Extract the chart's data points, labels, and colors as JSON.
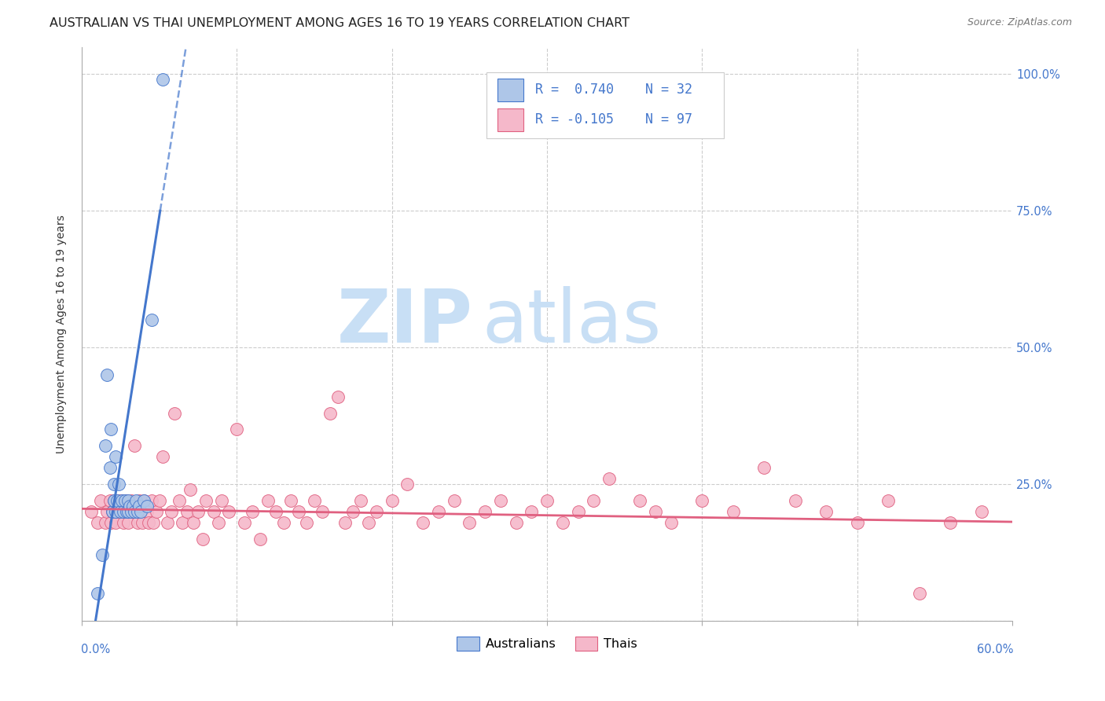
{
  "title": "AUSTRALIAN VS THAI UNEMPLOYMENT AMONG AGES 16 TO 19 YEARS CORRELATION CHART",
  "source": "Source: ZipAtlas.com",
  "ylabel": "Unemployment Among Ages 16 to 19 years",
  "right_yticks": [
    0.0,
    0.25,
    0.5,
    0.75,
    1.0
  ],
  "right_yticklabels": [
    "",
    "25.0%",
    "50.0%",
    "75.0%",
    "100.0%"
  ],
  "aus_R": 0.74,
  "aus_N": 32,
  "thai_R": -0.105,
  "thai_N": 97,
  "aus_color": "#aec6e8",
  "thai_color": "#f5b8ca",
  "aus_line_color": "#4477cc",
  "thai_line_color": "#e06080",
  "background_color": "#ffffff",
  "watermark_zip": "ZIP",
  "watermark_atlas": "atlas",
  "watermark_color_zip": "#c8dff5",
  "watermark_color_atlas": "#c8dff5",
  "legend_aus_label": "Australians",
  "legend_thai_label": "Thais",
  "aus_scatter_x": [
    0.01,
    0.013,
    0.015,
    0.016,
    0.018,
    0.019,
    0.02,
    0.021,
    0.021,
    0.022,
    0.022,
    0.023,
    0.024,
    0.025,
    0.026,
    0.027,
    0.028,
    0.029,
    0.03,
    0.03,
    0.031,
    0.032,
    0.033,
    0.034,
    0.035,
    0.036,
    0.037,
    0.038,
    0.04,
    0.042,
    0.045,
    0.052
  ],
  "aus_scatter_y": [
    0.05,
    0.12,
    0.32,
    0.45,
    0.28,
    0.35,
    0.2,
    0.25,
    0.22,
    0.3,
    0.2,
    0.22,
    0.25,
    0.2,
    0.22,
    0.2,
    0.22,
    0.2,
    0.22,
    0.2,
    0.21,
    0.2,
    0.21,
    0.2,
    0.22,
    0.2,
    0.21,
    0.2,
    0.22,
    0.21,
    0.55,
    0.99
  ],
  "thai_scatter_x": [
    0.006,
    0.01,
    0.012,
    0.015,
    0.016,
    0.018,
    0.019,
    0.02,
    0.021,
    0.022,
    0.023,
    0.024,
    0.025,
    0.026,
    0.027,
    0.028,
    0.029,
    0.03,
    0.031,
    0.032,
    0.033,
    0.034,
    0.035,
    0.036,
    0.037,
    0.038,
    0.039,
    0.04,
    0.042,
    0.043,
    0.045,
    0.046,
    0.048,
    0.05,
    0.052,
    0.055,
    0.058,
    0.06,
    0.063,
    0.065,
    0.068,
    0.07,
    0.072,
    0.075,
    0.078,
    0.08,
    0.085,
    0.088,
    0.09,
    0.095,
    0.1,
    0.105,
    0.11,
    0.115,
    0.12,
    0.125,
    0.13,
    0.135,
    0.14,
    0.145,
    0.15,
    0.155,
    0.16,
    0.165,
    0.17,
    0.175,
    0.18,
    0.185,
    0.19,
    0.2,
    0.21,
    0.22,
    0.23,
    0.24,
    0.25,
    0.26,
    0.27,
    0.28,
    0.29,
    0.3,
    0.31,
    0.32,
    0.33,
    0.34,
    0.36,
    0.37,
    0.38,
    0.4,
    0.42,
    0.44,
    0.46,
    0.48,
    0.5,
    0.52,
    0.54,
    0.56,
    0.58
  ],
  "thai_scatter_y": [
    0.2,
    0.18,
    0.22,
    0.18,
    0.2,
    0.22,
    0.18,
    0.2,
    0.22,
    0.18,
    0.2,
    0.22,
    0.2,
    0.22,
    0.18,
    0.2,
    0.22,
    0.18,
    0.2,
    0.22,
    0.2,
    0.32,
    0.2,
    0.18,
    0.22,
    0.2,
    0.18,
    0.22,
    0.2,
    0.18,
    0.22,
    0.18,
    0.2,
    0.22,
    0.3,
    0.18,
    0.2,
    0.38,
    0.22,
    0.18,
    0.2,
    0.24,
    0.18,
    0.2,
    0.15,
    0.22,
    0.2,
    0.18,
    0.22,
    0.2,
    0.35,
    0.18,
    0.2,
    0.15,
    0.22,
    0.2,
    0.18,
    0.22,
    0.2,
    0.18,
    0.22,
    0.2,
    0.38,
    0.41,
    0.18,
    0.2,
    0.22,
    0.18,
    0.2,
    0.22,
    0.25,
    0.18,
    0.2,
    0.22,
    0.18,
    0.2,
    0.22,
    0.18,
    0.2,
    0.22,
    0.18,
    0.2,
    0.22,
    0.26,
    0.22,
    0.2,
    0.18,
    0.22,
    0.2,
    0.28,
    0.22,
    0.2,
    0.18,
    0.22,
    0.05,
    0.18,
    0.2
  ],
  "xlim": [
    0.0,
    0.6
  ],
  "ylim": [
    0.0,
    1.05
  ],
  "grid_color": "#cccccc",
  "title_fontsize": 11.5,
  "legend_fontsize": 12,
  "tick_fontsize": 10.5
}
